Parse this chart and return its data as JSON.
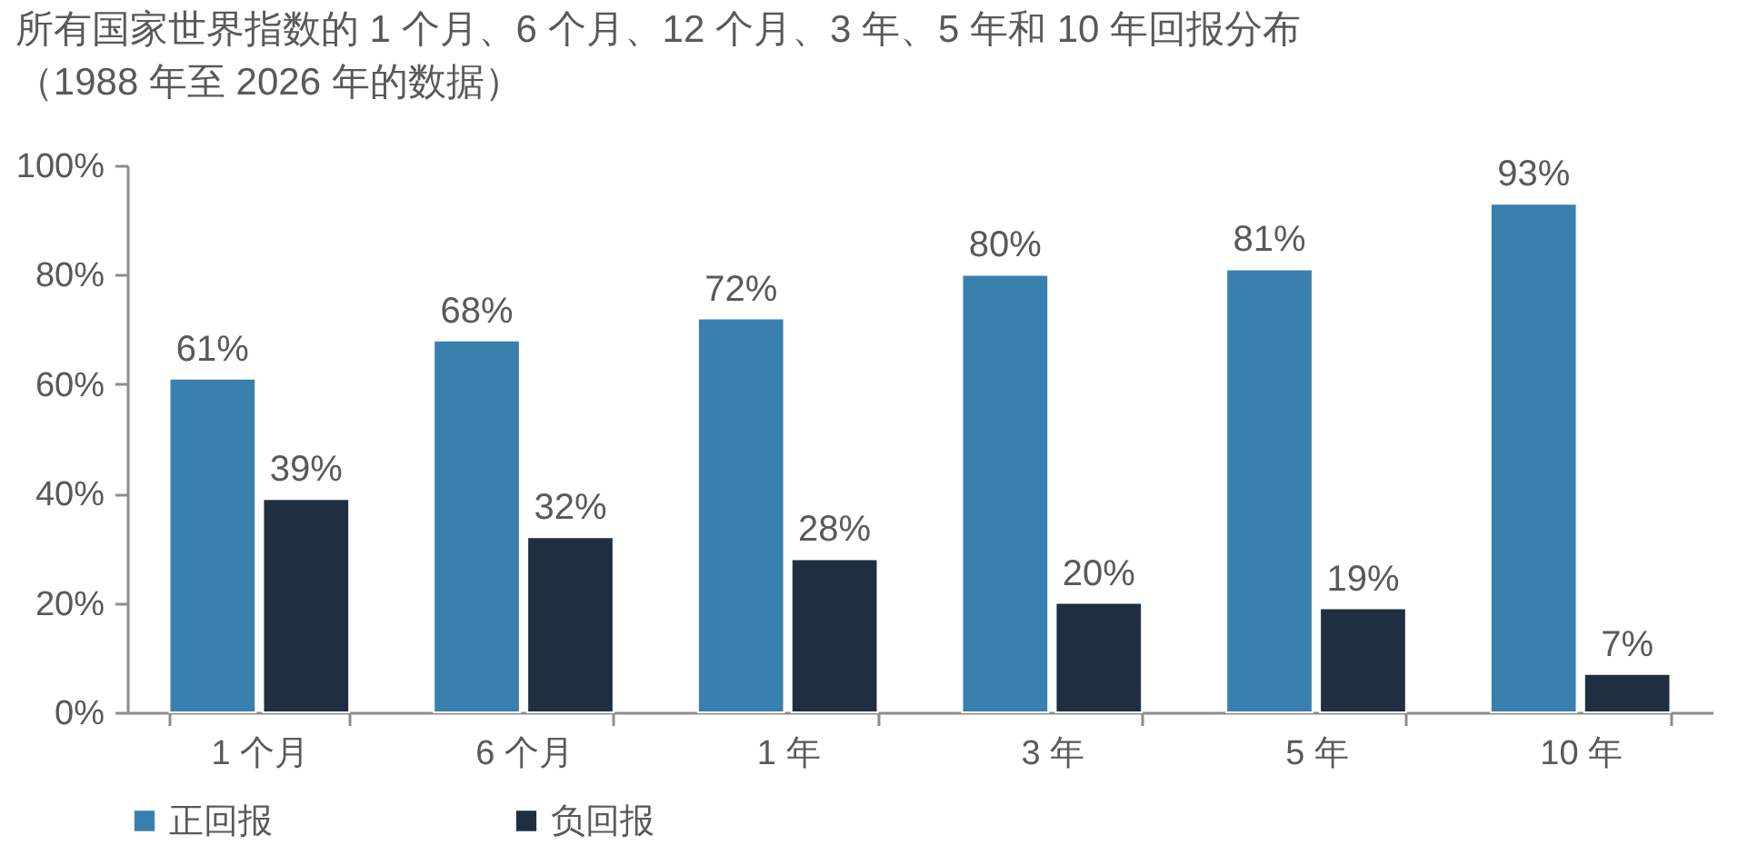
{
  "chart_data": {
    "type": "bar",
    "title": "所有国家世界指数的 1 个月、6 个月、12 个月、3 年、5 年和 10 年回报分布",
    "subtitle": "（1988 年至 2026 年的数据）",
    "categories": [
      "1 个月",
      "6 个月",
      "1 年",
      "3 年",
      "5 年",
      "10 年"
    ],
    "series": [
      {
        "name": "正回报",
        "color": "#3a80ae",
        "values": [
          61,
          68,
          72,
          80,
          81,
          93
        ],
        "value_labels": [
          "61%",
          "68%",
          "72%",
          "80%",
          "81%",
          "93%"
        ]
      },
      {
        "name": "负回报",
        "color": "#1f2f41",
        "values": [
          39,
          32,
          28,
          20,
          19,
          7
        ],
        "value_labels": [
          "39%",
          "32%",
          "28%",
          "20%",
          "19%",
          "7%"
        ]
      }
    ],
    "ylim": [
      0,
      100
    ],
    "yticks": [
      {
        "value": 0,
        "label": "0%"
      },
      {
        "value": 20,
        "label": "20%"
      },
      {
        "value": 40,
        "label": "40%"
      },
      {
        "value": 60,
        "label": "60%"
      },
      {
        "value": 80,
        "label": "80%"
      },
      {
        "value": 100,
        "label": "100%"
      }
    ],
    "grid": false,
    "legend": "bottom"
  }
}
